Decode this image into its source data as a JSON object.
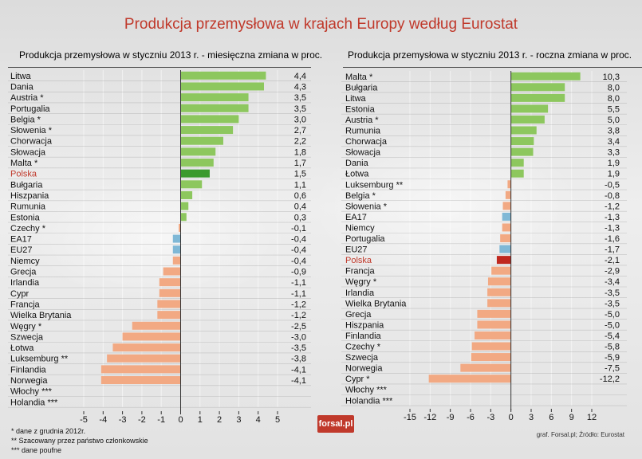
{
  "title": "Produkcja przemysłowa w krajach Europy według Eurostat",
  "footnotes": [
    "* dane z grudnia 2012r.",
    "** Szacowany przez państwo członkowskie",
    "*** dane poufne"
  ],
  "source": "graf. Forsal.pl; Źródło: Eurostat",
  "logo": "forsal.pl",
  "colors": {
    "positive": "#8dc75e",
    "negative": "#f2a983",
    "highlight_up": "#3b9a2e",
    "highlight_down": "#c0281f",
    "aggregate": "#7fb8d6",
    "highlight_label": "#c0392b"
  },
  "chart_data": [
    {
      "type": "bar",
      "orientation": "horizontal",
      "title": "Produkcja przemysłowa w styczniu 2013 r. - miesięczna zmiana w proc.",
      "xlim": [
        -5,
        5
      ],
      "xticks": [
        "-5",
        "-4",
        "-3",
        "-2",
        "-1",
        "0",
        "1",
        "2",
        "3",
        "4",
        "5"
      ],
      "categories": [
        "Litwa",
        "Dania",
        "Austria *",
        "Portugalia",
        "Belgia *",
        "Słowenia *",
        "Chorwacja",
        "Słowacja",
        "Malta *",
        "Polska",
        "Bułgaria",
        "Hiszpania",
        "Rumunia",
        "Estonia",
        "Czechy *",
        "EA17",
        "EU27",
        "Niemcy",
        "Grecja",
        "Irlandia",
        "Cypr",
        "Francja",
        "Wielka Brytania",
        "Węgry *",
        "Szwecja",
        "Łotwa",
        "Luksemburg **",
        "Finlandia",
        "Norwegia",
        "Włochy ***",
        "Holandia ***"
      ],
      "values": [
        4.4,
        4.3,
        3.5,
        3.5,
        3.0,
        2.7,
        2.2,
        1.8,
        1.7,
        1.5,
        1.1,
        0.6,
        0.4,
        0.3,
        -0.1,
        -0.4,
        -0.4,
        -0.4,
        -0.9,
        -1.1,
        -1.1,
        -1.2,
        -1.2,
        -2.5,
        -3.0,
        -3.5,
        -3.8,
        -4.1,
        -4.1,
        null,
        null
      ],
      "value_labels": [
        "4,4",
        "4,3",
        "3,5",
        "3,5",
        "3,0",
        "2,7",
        "2,2",
        "1,8",
        "1,7",
        "1,5",
        "1,1",
        "0,6",
        "0,4",
        "0,3",
        "-0,1",
        "-0,4",
        "-0,4",
        "-0,4",
        "-0,9",
        "-1,1",
        "-1,1",
        "-1,2",
        "-1,2",
        "-2,5",
        "-3,0",
        "-3,5",
        "-3,8",
        "-4,1",
        "-4,1",
        "",
        ""
      ],
      "highlight": "Polska",
      "aggregates": [
        "EA17",
        "EU27"
      ]
    },
    {
      "type": "bar",
      "orientation": "horizontal",
      "title": "Produkcja przemysłowa w styczniu 2013 r. - roczna zmiana w proc.",
      "xlim": [
        -15,
        12
      ],
      "xticks": [
        "-15",
        "-12",
        "-9",
        "-6",
        "-3",
        "0",
        "3",
        "6",
        "9",
        "12"
      ],
      "categories": [
        "Malta *",
        "Bułgaria",
        "Litwa",
        "Estonia",
        "Austria *",
        "Rumunia",
        "Chorwacja",
        "Słowacja",
        "Dania",
        "Łotwa",
        "Luksemburg **",
        "Belgia *",
        "Słowenia *",
        "EA17",
        "Niemcy",
        "Portugalia",
        "EU27",
        "Polska",
        "Francja",
        "Węgry *",
        "Irlandia",
        "Wielka Brytania",
        "Grecja",
        "Hiszpania",
        "Finlandia",
        "Czechy *",
        "Szwecja",
        "Norwegia",
        "Cypr *",
        "Włochy ***",
        "Holandia ***"
      ],
      "values": [
        10.3,
        8.0,
        8.0,
        5.5,
        5.0,
        3.8,
        3.4,
        3.3,
        1.9,
        1.9,
        -0.5,
        -0.8,
        -1.2,
        -1.3,
        -1.3,
        -1.6,
        -1.7,
        -2.1,
        -2.9,
        -3.4,
        -3.5,
        -3.5,
        -5.0,
        -5.0,
        -5.4,
        -5.8,
        -5.9,
        -7.5,
        -12.2,
        null,
        null
      ],
      "value_labels": [
        "10,3",
        "8,0",
        "8,0",
        "5,5",
        "5,0",
        "3,8",
        "3,4",
        "3,3",
        "1,9",
        "1,9",
        "-0,5",
        "-0,8",
        "-1,2",
        "-1,3",
        "-1,3",
        "-1,6",
        "-1,7",
        "-2,1",
        "-2,9",
        "-3,4",
        "-3,5",
        "-3,5",
        "-5,0",
        "-5,0",
        "-5,4",
        "-5,8",
        "-5,9",
        "-7,5",
        "-12,2",
        "",
        ""
      ],
      "highlight": "Polska",
      "aggregates": [
        "EA17",
        "EU27"
      ]
    }
  ]
}
